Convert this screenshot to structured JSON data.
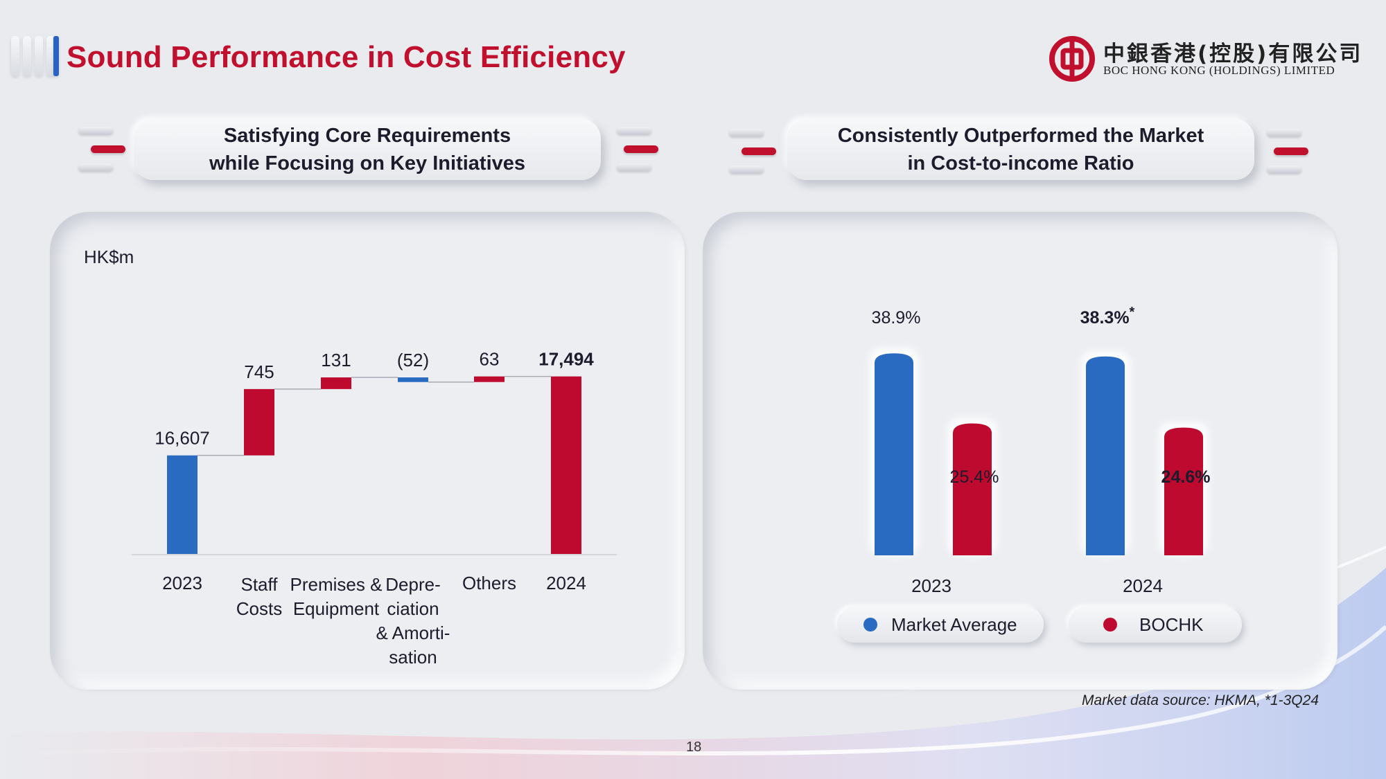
{
  "page": {
    "title": "Sound Performance in Cost Efficiency",
    "page_number": "18",
    "source_note": "Market data source: HKMA, *1-3Q24"
  },
  "logo": {
    "cn": "中銀香港(控股)有限公司",
    "en": "BOC HONG KONG (HOLDINGS) LIMITED",
    "color": "#c0102e"
  },
  "left_section": {
    "header_line1": "Satisfying Core Requirements",
    "header_line2": "while Focusing on Key Initiatives"
  },
  "right_section": {
    "header_line1": "Consistently Outperformed the Market",
    "header_line2": "in Cost-to-income Ratio"
  },
  "colors": {
    "blue": "#2a6bc2",
    "red": "#bd0a2e",
    "title_red": "#c0102e"
  },
  "chart_data": [
    {
      "type": "bar",
      "subtype": "waterfall",
      "unit_label": "HK$m",
      "categories": [
        [
          "2023"
        ],
        [
          "Staff",
          "Costs"
        ],
        [
          "Premises &",
          "Equipment"
        ],
        [
          "Depre-",
          "ciation",
          "& Amorti-",
          "sation"
        ],
        [
          "Others"
        ],
        [
          "2024"
        ]
      ],
      "values": [
        16607,
        745,
        131,
        -52,
        63,
        17494
      ],
      "data_labels": [
        "16,607",
        "745",
        "131",
        "(52)",
        "63",
        "17,494"
      ],
      "bar_kinds": [
        "total",
        "delta",
        "delta",
        "delta",
        "delta",
        "total"
      ],
      "bar_colors": [
        "#2a6bc2",
        "#bd0a2e",
        "#bd0a2e",
        "#2a6bc2",
        "#bd0a2e",
        "#bd0a2e"
      ],
      "bold_labels": [
        false,
        false,
        false,
        false,
        false,
        true
      ],
      "ylim": [
        15500,
        17600
      ]
    },
    {
      "type": "bar",
      "categories": [
        "2023",
        "2024"
      ],
      "series": [
        {
          "name": "Market Average",
          "values": [
            38.9,
            38.3
          ],
          "color": "#2a6bc2"
        },
        {
          "name": "BOCHK",
          "values": [
            25.4,
            24.6
          ],
          "color": "#bd0a2e"
        }
      ],
      "data_labels": [
        [
          "38.9%",
          "38.3%"
        ],
        [
          "25.4%",
          "24.6%"
        ]
      ],
      "label_suffix": [
        [
          "",
          "*"
        ],
        [
          "",
          ""
        ]
      ],
      "bold_labels": [
        [
          false,
          true
        ],
        [
          false,
          true
        ]
      ],
      "ylim": [
        0,
        40
      ],
      "legend_position": "bottom"
    }
  ]
}
